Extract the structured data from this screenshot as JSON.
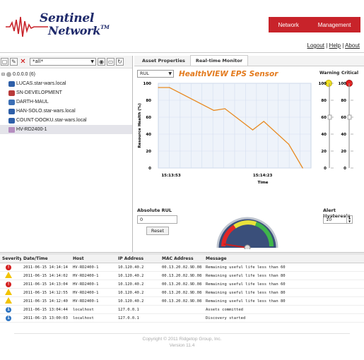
{
  "logo": {
    "line1": "Sentinel",
    "line2": "Network",
    "tm": "TM"
  },
  "nav": {
    "network": "Network",
    "management": "Management"
  },
  "userlinks": {
    "logout": "Logout",
    "help": "Help",
    "about": "About",
    "sep": "|"
  },
  "toolbar": {
    "filter_value": "*all*"
  },
  "tree": {
    "root": "0.0.0.0 (6)",
    "items": [
      "LUCAS.star-wars.local",
      "SN-DEVELOPMENT",
      "DARTH-MAUL",
      "HAN-SOLO.star-wars.local",
      "COUNT-DOOKU.star-wars.local",
      "HV-RD2400-1"
    ]
  },
  "tabs": [
    "Asset Properties",
    "Real-time Monitor"
  ],
  "monitor": {
    "metric_select": "RUL",
    "title": "HealthVIEW EPS Sensor",
    "warning_label": "Warning",
    "critical_label": "Critical",
    "absolute_rul_label": "Absolute RUL",
    "absolute_rul_value": "0",
    "reset_label": "Reset",
    "alert_hysteresis_label": "Alert Hysteresis",
    "alert_hysteresis_value": "10",
    "colors": {
      "line": "#e88a22",
      "warning": "#f0e020",
      "critical": "#e81d1d",
      "title": "#e37a1d"
    }
  },
  "chart_data": {
    "type": "line",
    "title": "HealthVIEW EPS Sensor",
    "xlabel": "Time",
    "ylabel": "Resource Health (%)",
    "x_tick_labels": [
      "15:13:53",
      "15:14:23"
    ],
    "yticks": [
      0,
      20,
      40,
      60,
      80,
      100
    ],
    "ylim": [
      0,
      100
    ],
    "series": [
      {
        "points": [
          [
            0,
            95
          ],
          [
            4,
            95
          ],
          [
            20,
            68
          ],
          [
            24,
            70
          ],
          [
            34,
            45
          ],
          [
            38,
            55
          ],
          [
            47,
            28
          ],
          [
            52,
            0
          ]
        ]
      }
    ],
    "xlim": [
      0,
      55
    ],
    "grid": true
  },
  "sliders": {
    "warning": {
      "ticks": [
        100,
        80,
        60,
        40,
        20,
        0
      ],
      "value": 60
    },
    "critical": {
      "ticks": [
        100,
        80,
        60,
        40,
        20,
        0
      ],
      "value": 60
    }
  },
  "gauge": {
    "value_fraction": 0.05
  },
  "log": {
    "headers": [
      "Severity",
      "Date/Time",
      "Host",
      "IP Address",
      "MAC Address",
      "Message"
    ],
    "rows": [
      {
        "sev": "critical",
        "time": "2011-06-15 14:14:14",
        "host": "HV-RD2400-1",
        "ip": "10.120.40.2",
        "mac": "00.13.20.02.9D.08",
        "msg": "Remaining useful life less than 60"
      },
      {
        "sev": "warning",
        "time": "2011-06-15 14:14:02",
        "host": "HV-RD2400-1",
        "ip": "10.120.40.2",
        "mac": "00.13.20.02.9D.08",
        "msg": "Remaining useful life less than 80"
      },
      {
        "sev": "critical",
        "time": "2011-06-15 14:13:04",
        "host": "HV-RD2400-1",
        "ip": "10.120.40.2",
        "mac": "00.13.20.02.9D.08",
        "msg": "Remaining useful life less than 60"
      },
      {
        "sev": "warning",
        "time": "2011-06-15 14:12:55",
        "host": "HV-RD2400-1",
        "ip": "10.120.40.2",
        "mac": "00.13.20.02.9D.08",
        "msg": "Remaining useful life less than 80"
      },
      {
        "sev": "warning",
        "time": "2011-06-15 14:12:40",
        "host": "HV-RD2400-1",
        "ip": "10.120.40.2",
        "mac": "00.13.20.02.9D.08",
        "msg": "Remaining useful life less than 80"
      },
      {
        "sev": "info",
        "time": "2011-06-15 13:04:44",
        "host": "localhost",
        "ip": "127.0.0.1",
        "mac": "",
        "msg": "Assets committed"
      },
      {
        "sev": "info",
        "time": "2011-06-15 13:00:03",
        "host": "localhost",
        "ip": "127.0.0.1",
        "mac": "",
        "msg": "Discovery started"
      }
    ]
  },
  "footer": {
    "copyright": "Copyright © 2011 Ridgetop Group, Inc.",
    "version": "Version 11.4"
  }
}
